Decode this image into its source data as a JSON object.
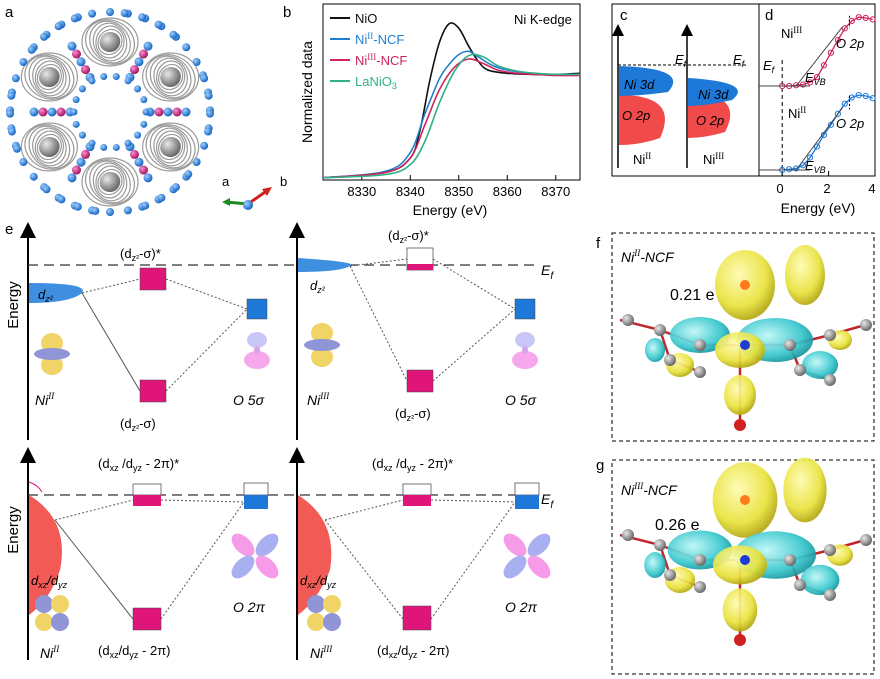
{
  "panels": {
    "a": {
      "label": "a",
      "axis_a": "a",
      "axis_b": "b"
    },
    "b": {
      "label": "b"
    },
    "c": {
      "label": "c",
      "ef_left": "E",
      "ef_sub": "f",
      "ni3d": "Ni 3d",
      "o2p": "O 2p",
      "ni2": "Ni",
      "ni2_ox": "II",
      "ni3": "Ni",
      "ni3_ox": "III"
    },
    "d": {
      "label": "d",
      "ni3": "Ni",
      "ni3_ox": "III",
      "ni2": "Ni",
      "ni2_ox": "II",
      "o2p": "O 2p",
      "ef": "E",
      "ef_sub": "f",
      "evb": "E",
      "evb_sub": "VB",
      "xlabel": "Energy (eV)",
      "xticks": [
        "0",
        "2",
        "4"
      ]
    },
    "e": {
      "label": "e",
      "ylabel": "Energy",
      "ef": "E",
      "ef_sub": "f",
      "top_left": {
        "dz2": "d",
        "dz2_sub": "z²",
        "anti": "(d",
        "anti_sub": "z²",
        "anti_tail": "-σ)*",
        "bond": "(d",
        "bond_sub": "z²",
        "bond_tail": "-σ)",
        "metal": "Ni",
        "metal_ox": "II",
        "ligand": "O 5σ"
      },
      "top_right": {
        "dz2": "d",
        "dz2_sub": "z²",
        "anti": "(d",
        "anti_sub": "z²",
        "anti_tail": "-σ)*",
        "bond": "(d",
        "bond_sub": "z²",
        "bond_tail": "-σ)",
        "metal": "Ni",
        "metal_ox": "III",
        "ligand": "O 5σ"
      },
      "bot_left": {
        "d": "d",
        "d_sub1": "xz",
        "d_mid": "/d",
        "d_sub2": "yz",
        "anti": "(d",
        "anti_sub1": "xz",
        "anti_mid": " /d",
        "anti_sub2": "yz",
        "anti_tail": " - 2π)*",
        "bond": "(d",
        "bond_sub1": "xz",
        "bond_mid": "/d",
        "bond_sub2": "yz",
        "bond_tail": " - 2π)",
        "metal": "Ni",
        "metal_ox": "II",
        "ligand": "O 2π"
      },
      "bot_right": {
        "d": "d",
        "d_sub1": "xz",
        "d_mid": "/d",
        "d_sub2": "yz",
        "anti": "(d",
        "anti_sub1": "xz",
        "anti_mid": " /d",
        "anti_sub2": "yz",
        "anti_tail": " - 2π)*",
        "bond": "(d",
        "bond_sub1": "xz",
        "bond_mid": "/d",
        "bond_sub2": "yz",
        "bond_tail": " - 2π)",
        "metal": "Ni",
        "metal_ox": "III",
        "ligand": "O 2π"
      }
    },
    "f": {
      "label": "f",
      "title": "Ni",
      "title_ox": "II",
      "title_tail": "-NCF",
      "charge": "0.21 e"
    },
    "g": {
      "label": "g",
      "title": "Ni",
      "title_ox": "III",
      "title_tail": "-NCF",
      "charge": "0.26 e"
    }
  },
  "colors": {
    "nio": "#111111",
    "ni2": "#1f7fd0",
    "ni3": "#d0245a",
    "lanio3": "#2eb08a",
    "blue": "#1e78d8",
    "red": "#ef4a4a",
    "magenta": "#e0157a",
    "orbital_blue": "#8f95d6",
    "orbital_yellow": "#f1d468",
    "orbital_pink": "#f07de0"
  },
  "chart_data": [
    {
      "type": "line",
      "title": "Ni K-edge",
      "xlabel": "Energy (eV)",
      "ylabel": "Normalized data",
      "xlim": [
        8322,
        8375
      ],
      "ylim": [
        0,
        1.6
      ],
      "xticks": [
        8330,
        8340,
        8350,
        8360,
        8370
      ],
      "legend": "top-left",
      "grid": false,
      "series": [
        {
          "name": "NiO",
          "color": "#111111",
          "x": [
            8322,
            8335,
            8340,
            8342,
            8344,
            8346,
            8348,
            8350,
            8352,
            8354,
            8356,
            8360,
            8365,
            8370,
            8375
          ],
          "y": [
            0.02,
            0.07,
            0.2,
            0.45,
            0.9,
            1.25,
            1.42,
            1.38,
            1.22,
            1.08,
            1.0,
            0.97,
            0.96,
            0.96,
            0.97
          ]
        },
        {
          "name": "NiII-NCF",
          "color": "#1f7fd0",
          "x": [
            8322,
            8335,
            8340,
            8343,
            8346,
            8348,
            8350,
            8352,
            8354,
            8357,
            8360,
            8365,
            8370,
            8375
          ],
          "y": [
            0.02,
            0.08,
            0.25,
            0.6,
            0.92,
            1.05,
            1.14,
            1.17,
            1.12,
            1.04,
            1.0,
            0.97,
            0.96,
            0.96
          ]
        },
        {
          "name": "NiIII-NCF",
          "color": "#d0245a",
          "x": [
            8322,
            8335,
            8340,
            8343,
            8346,
            8349,
            8352,
            8355,
            8358,
            8362,
            8366,
            8370,
            8375
          ],
          "y": [
            0.02,
            0.07,
            0.2,
            0.5,
            0.82,
            1.02,
            1.1,
            1.06,
            1.0,
            0.97,
            0.96,
            0.95,
            0.95
          ]
        },
        {
          "name": "LaNiO3",
          "color": "#2eb08a",
          "x": [
            8322,
            8335,
            8340,
            8343,
            8346,
            8349,
            8352,
            8355,
            8358,
            8362,
            8366,
            8370,
            8375
          ],
          "y": [
            0.02,
            0.05,
            0.14,
            0.35,
            0.7,
            0.98,
            1.13,
            1.12,
            1.04,
            0.99,
            0.97,
            0.96,
            0.96
          ]
        }
      ]
    },
    {
      "type": "scatter",
      "xlabel": "Energy (eV)",
      "xlim": [
        -1,
        4
      ],
      "xticks": [
        0,
        2,
        4
      ],
      "grid": false,
      "series": [
        {
          "name": "NiIII",
          "color": "#d0245a",
          "x": [
            0.0,
            0.3,
            0.6,
            0.9,
            1.2,
            1.5,
            1.8,
            2.1,
            2.4,
            2.7,
            3.0,
            3.3,
            3.6,
            3.9
          ],
          "y": [
            0.0,
            0.0,
            0.01,
            0.02,
            0.05,
            0.12,
            0.28,
            0.45,
            0.62,
            0.78,
            0.88,
            0.93,
            0.92,
            0.9
          ]
        },
        {
          "name": "NiII",
          "color": "#1e78d8",
          "x": [
            0.0,
            0.3,
            0.6,
            0.9,
            1.2,
            1.5,
            1.8,
            2.1,
            2.4,
            2.7,
            3.0,
            3.3,
            3.6,
            3.9
          ],
          "y": [
            0.0,
            0.01,
            0.02,
            0.06,
            0.16,
            0.3,
            0.45,
            0.58,
            0.72,
            0.85,
            0.93,
            0.96,
            0.95,
            0.92
          ]
        }
      ]
    }
  ]
}
